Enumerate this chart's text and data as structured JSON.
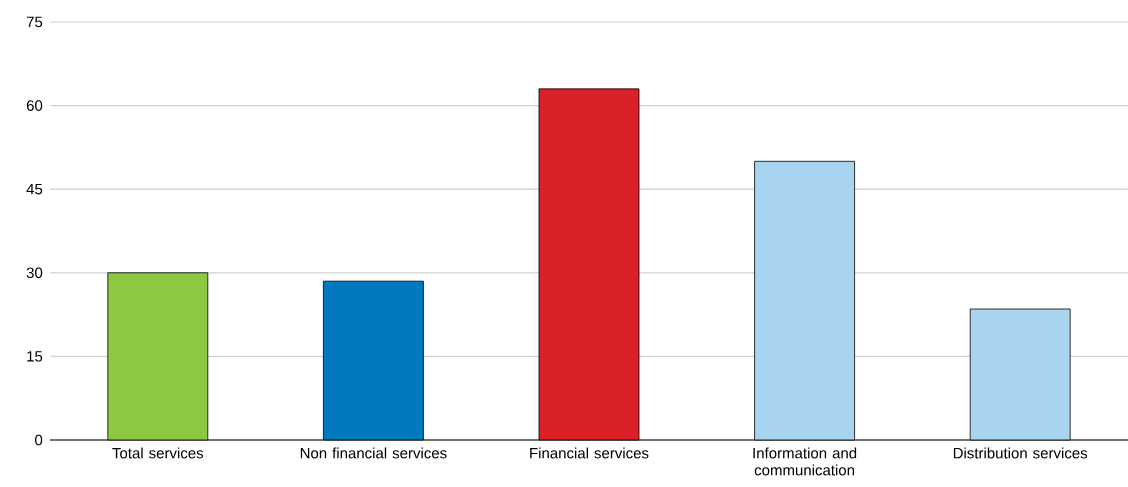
{
  "chart_data": {
    "type": "bar",
    "categories": [
      "Total services",
      "Non financial services",
      "Financial services",
      "Information and communication",
      "Distribution services"
    ],
    "values": [
      30,
      28.5,
      63,
      50,
      23.5
    ],
    "colors": [
      "#8cc841",
      "#0079c0",
      "#da2128",
      "#a9d4f0",
      "#a9d4f0"
    ],
    "ylim": [
      0,
      75
    ],
    "yticks": [
      0,
      15,
      30,
      45,
      60,
      75
    ],
    "grid": "y"
  }
}
